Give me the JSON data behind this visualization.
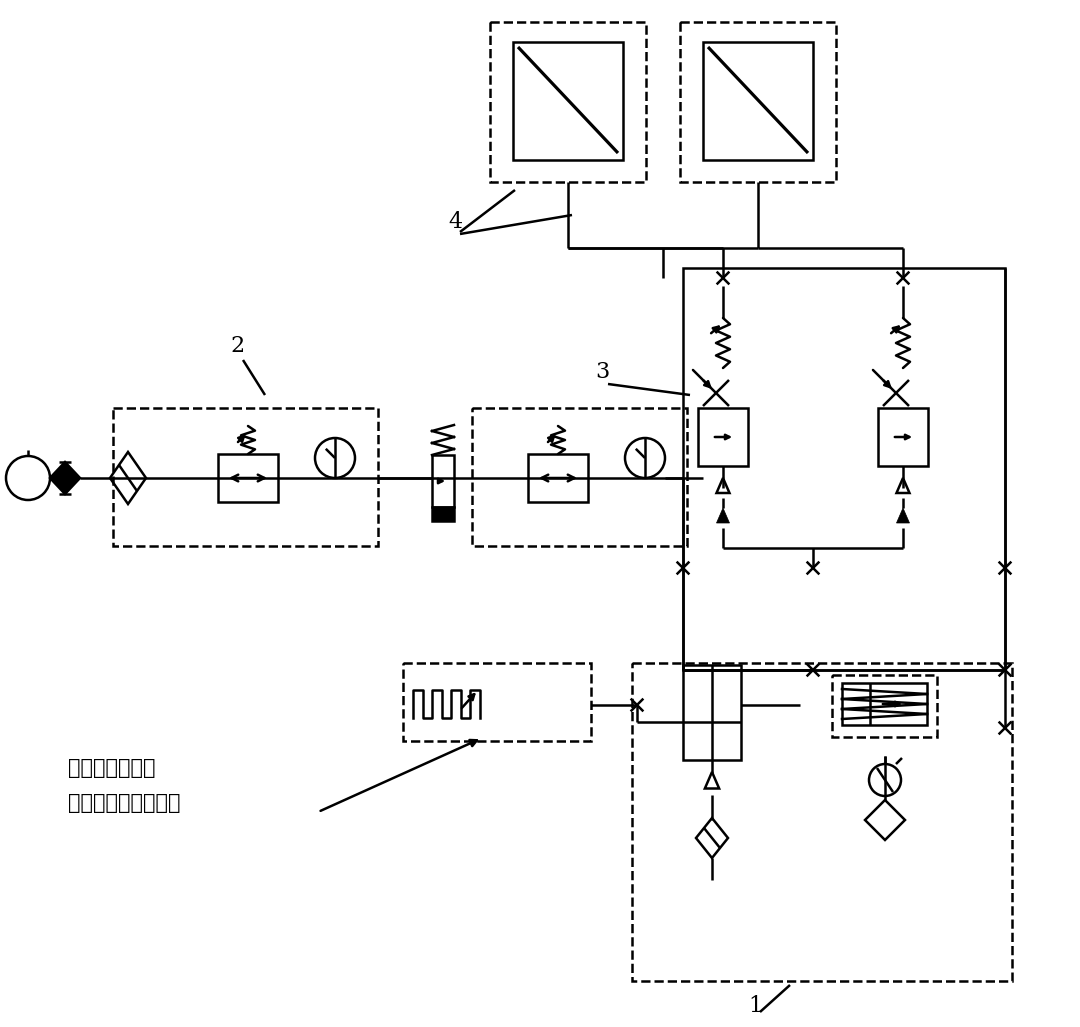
{
  "bg_color": "#ffffff",
  "line_color": "#000000",
  "lw": 1.8,
  "label_4": "4",
  "label_3": "3",
  "label_2": "2",
  "label_1": "1",
  "annotation_line1": "气动频率发生器",
  "annotation_line2": "控制气动泵供油频率"
}
